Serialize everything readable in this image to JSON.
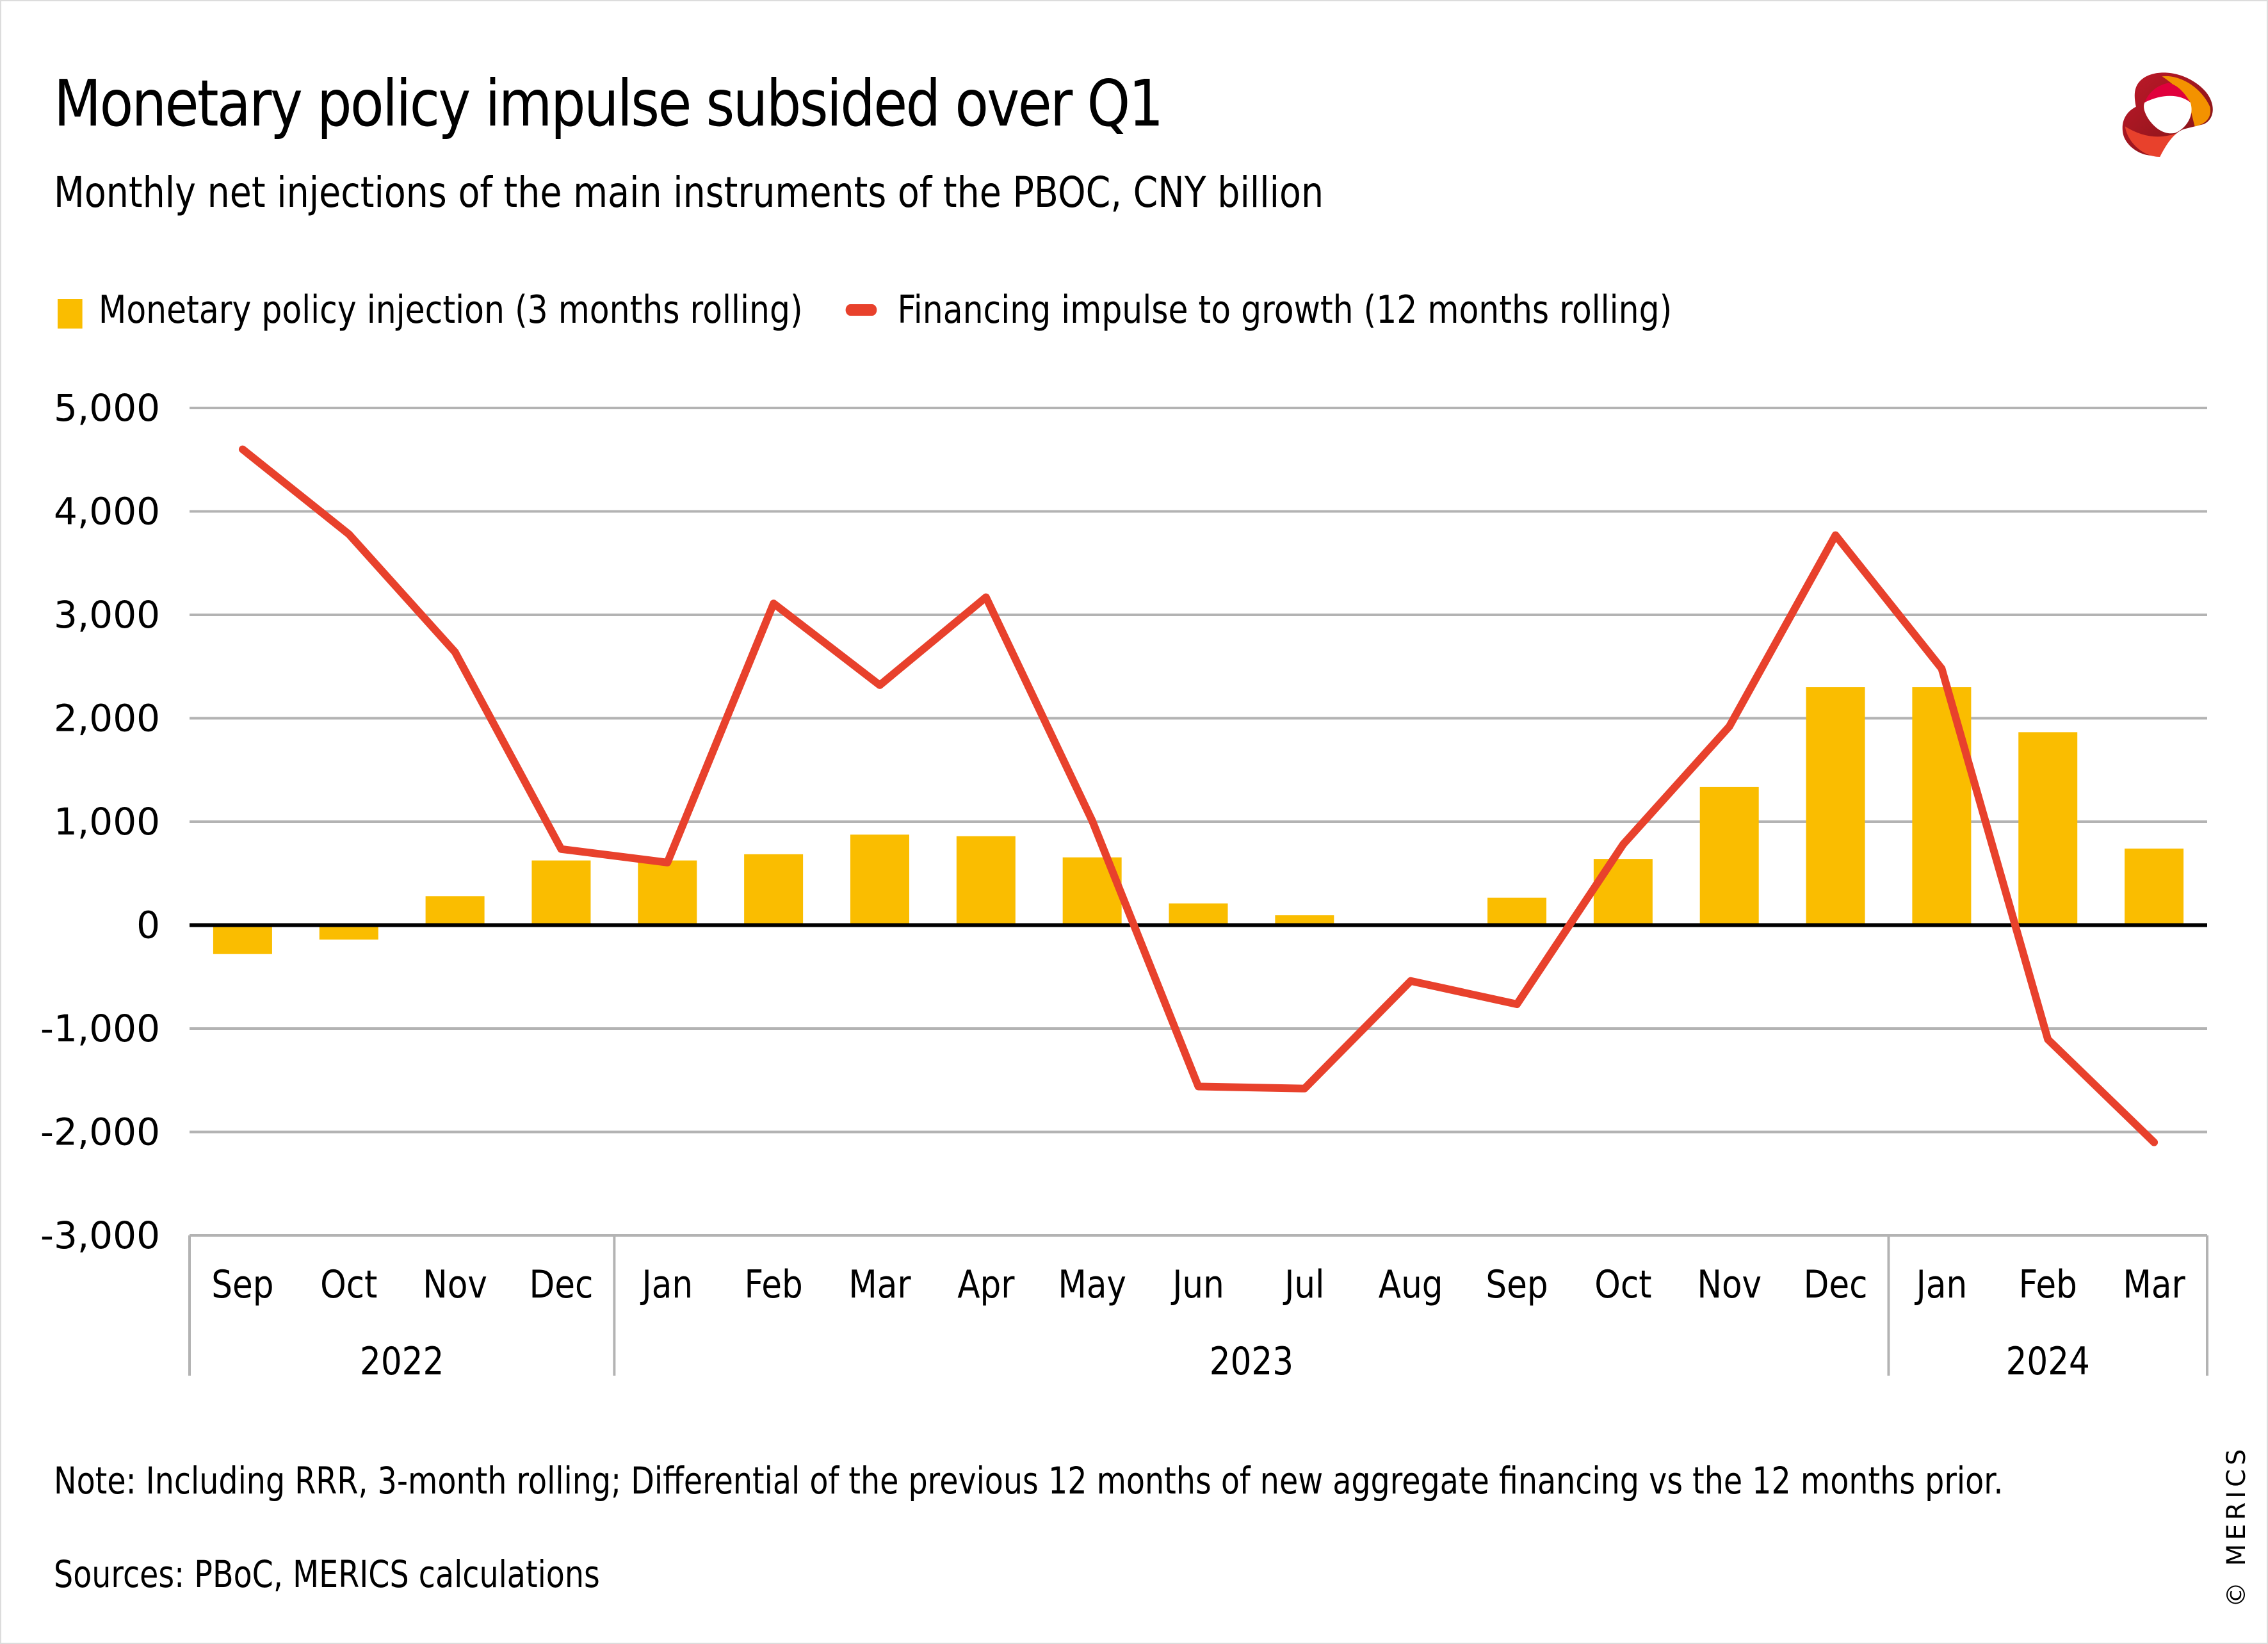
{
  "header": {
    "title": "Monetary policy impulse subsided over Q1",
    "subtitle": "Monthly net injections of the main instruments of the PBOC, CNY billion",
    "logo": "merics-logo-icon"
  },
  "footer": {
    "note": "Note: Including RRR, 3-month rolling; Differential of the previous 12 months of new aggregate financing vs the 12 months prior.",
    "sources": "Sources: PBoC, MERICS calculations",
    "copyright": "© MERICS"
  },
  "colors": {
    "bar": "#fabd00",
    "line": "#e8412c",
    "grid": "#b3b3b3",
    "zero_axis": "#000000"
  },
  "chart_data": {
    "type": "bar",
    "title": "Monetary policy impulse subsided over Q1",
    "subtitle": "Monthly net injections of the main instruments of the PBOC, CNY billion",
    "xlabel": "",
    "ylabel": "CNY billion",
    "ylim": [
      -3000,
      5000
    ],
    "yticks": [
      5000,
      4000,
      3000,
      2000,
      1000,
      0,
      -1000,
      -2000,
      -3000
    ],
    "ytick_labels": [
      "5,000",
      "4,000",
      "3,000",
      "2,000",
      "1,000",
      "0",
      "-1,000",
      "-2,000",
      "-3,000"
    ],
    "grid": true,
    "legend_position": "top-left",
    "categories": [
      "Sep",
      "Oct",
      "Nov",
      "Dec",
      "Jan",
      "Feb",
      "Mar",
      "Apr",
      "May",
      "Jun",
      "Jul",
      "Aug",
      "Sep",
      "Oct",
      "Nov",
      "Dec",
      "Jan",
      "Feb",
      "Mar"
    ],
    "year_groups": [
      {
        "label": "2022",
        "count": 4
      },
      {
        "label": "2023",
        "count": 12
      },
      {
        "label": "2024",
        "count": 3
      }
    ],
    "series": [
      {
        "name": "Monetary policy injection (3 months rolling)",
        "type": "bar",
        "values": [
          -280,
          -140,
          280,
          625,
          625,
          685,
          875,
          860,
          655,
          210,
          95,
          0,
          265,
          640,
          1335,
          2300,
          2300,
          1865,
          740
        ]
      },
      {
        "name": "Financing impulse to growth (12 months rolling)",
        "type": "line",
        "values": [
          4600,
          3780,
          2640,
          735,
          605,
          3110,
          2320,
          3170,
          1010,
          -1560,
          -1580,
          -540,
          -765,
          780,
          1920,
          3770,
          2480,
          -1105,
          -2100
        ]
      }
    ]
  }
}
